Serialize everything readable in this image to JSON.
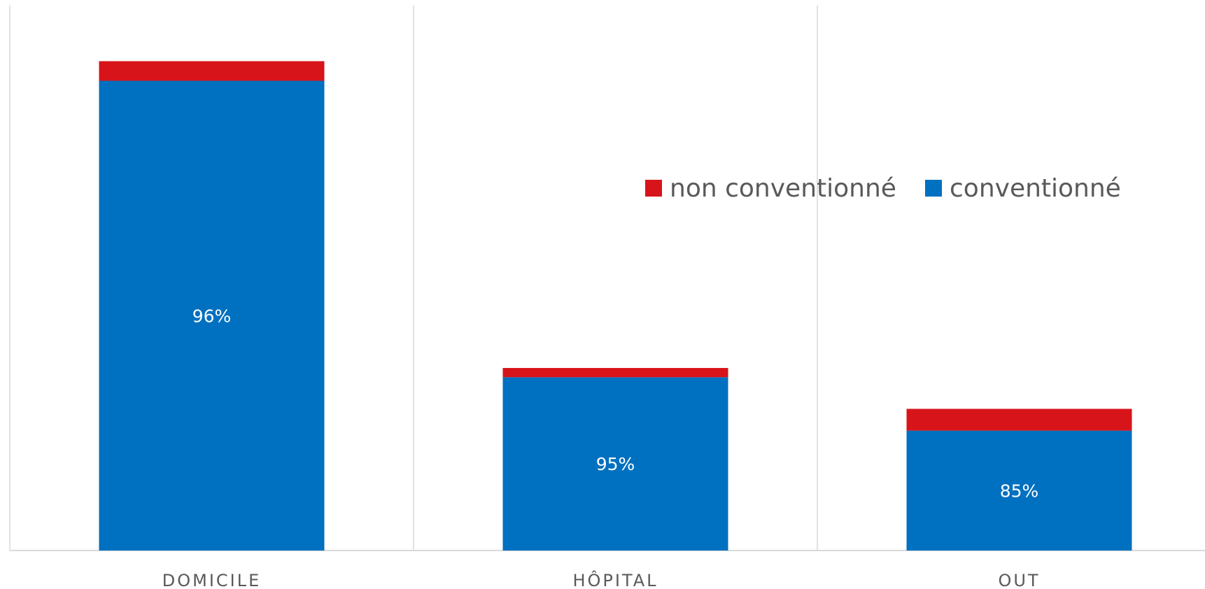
{
  "chart_data": {
    "type": "bar",
    "stacked": true,
    "title": "",
    "xlabel": "",
    "ylabel": "",
    "categories": [
      "DOMICILE",
      "HÔPITAL",
      "OUT"
    ],
    "ylim": [
      0,
      100
    ],
    "grid": "vertical separators between categories",
    "legend": {
      "position": "right-center",
      "entries": [
        "non conventionné",
        "conventionné"
      ]
    },
    "series": [
      {
        "name": "conventionné",
        "color": "#0070C0",
        "values": [
          86.2,
          31.8,
          22.0
        ],
        "labels": [
          "96%",
          "95%",
          "85%"
        ]
      },
      {
        "name": "non conventionné",
        "color": "#D7141A",
        "values": [
          3.6,
          1.7,
          4.0
        ]
      }
    ]
  }
}
